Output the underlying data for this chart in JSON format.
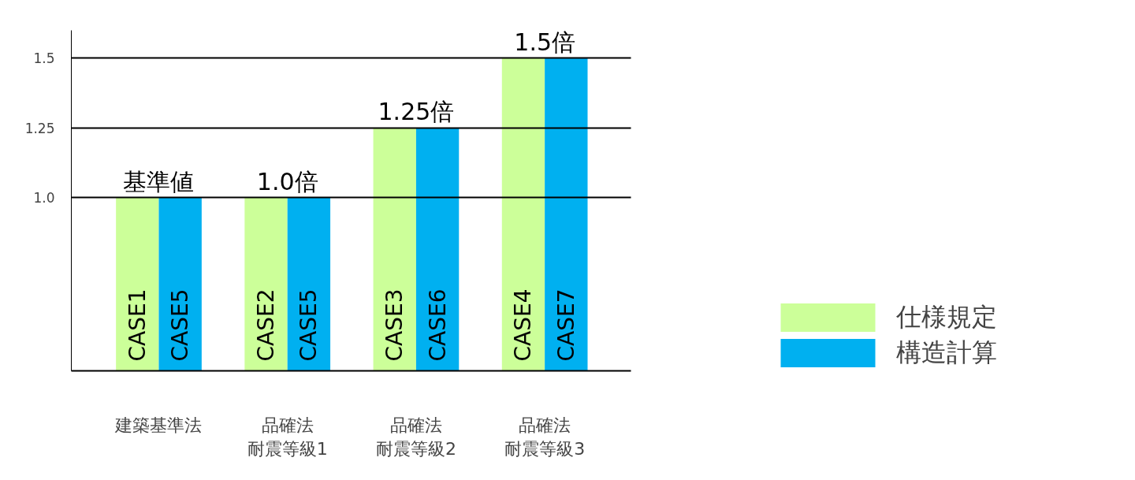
{
  "chart_data": {
    "type": "bar",
    "categories": [
      "建築基準法",
      "品確法耐震等級1",
      "品確法耐震等級2",
      "品確法耐震等級3"
    ],
    "series": [
      {
        "name": "仕様規定",
        "color": "#ccff99",
        "values": [
          1.0,
          1.0,
          1.25,
          1.5
        ],
        "value_labels": [
          "CASE1",
          "CASE2",
          "CASE3",
          "CASE4"
        ]
      },
      {
        "name": "構造計算",
        "color": "#00b0f0",
        "values": [
          1.0,
          1.0,
          1.25,
          1.5
        ],
        "value_labels": [
          "CASE5",
          "CASE5",
          "CASE6",
          "CASE7"
        ]
      }
    ],
    "ylim": [
      0.38,
      1.6
    ],
    "yticks": [
      {
        "value": 1.0,
        "label": "1.0"
      },
      1.25,
      1.5
    ],
    "grid": "y",
    "legend": "right",
    "annotations": [
      {
        "text": "基準値",
        "x": "建築基準法",
        "y": 1.0
      },
      {
        "text": "1.0倍",
        "x": "品確法耐震等級1",
        "y": 1.0
      },
      {
        "text": "1.25倍",
        "x": "品確法耐震等級2",
        "y": 1.25
      },
      {
        "text": "1.5倍",
        "x": "品確法耐震等級3",
        "y": 1.5
      }
    ]
  }
}
